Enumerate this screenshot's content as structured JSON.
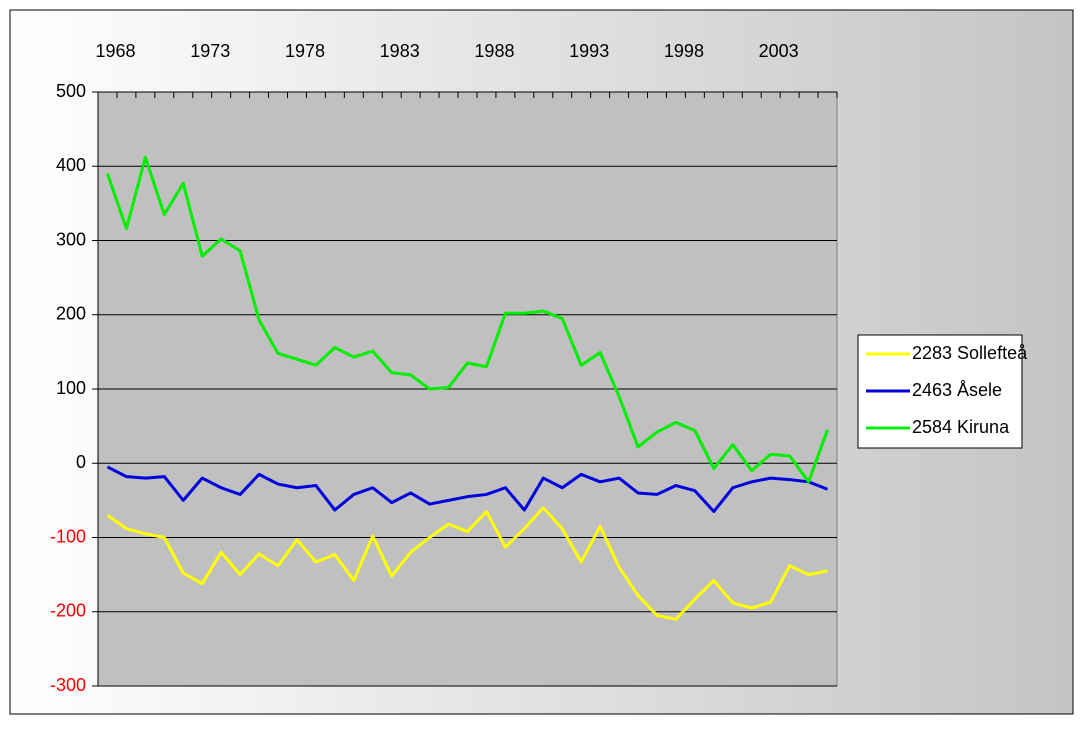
{
  "chart_data": {
    "type": "line",
    "categories": [
      "1968",
      null,
      null,
      null,
      null,
      "1973",
      null,
      null,
      null,
      null,
      "1978",
      null,
      null,
      null,
      null,
      "1983",
      null,
      null,
      null,
      null,
      "1988",
      null,
      null,
      null,
      null,
      "1993",
      null,
      null,
      null,
      null,
      "1998",
      null,
      null,
      null,
      null,
      "2003",
      null,
      null,
      null
    ],
    "series": [
      {
        "name": "2283 Sollefteå",
        "color": "#ffff00",
        "values": [
          -70,
          -88,
          -95,
          -100,
          -148,
          -162,
          -120,
          -150,
          -122,
          -138,
          -103,
          -133,
          -123,
          -158,
          -98,
          -152,
          -120,
          -100,
          -82,
          -92,
          -65,
          -113,
          -88,
          -60,
          -88,
          -133,
          -85,
          -140,
          -178,
          -205,
          -210,
          -183,
          -158,
          -188,
          -195,
          -187,
          -138,
          -150,
          -145
        ]
      },
      {
        "name": "2463 Åsele",
        "color": "#0000dd",
        "values": [
          -5,
          -18,
          -20,
          -18,
          -50,
          -20,
          -33,
          -42,
          -15,
          -28,
          -33,
          -30,
          -63,
          -42,
          -33,
          -53,
          -40,
          -55,
          -50,
          -45,
          -42,
          -33,
          -63,
          -20,
          -33,
          -15,
          -25,
          -20,
          -40,
          -42,
          -30,
          -37,
          -65,
          -33,
          -25,
          -20,
          -22,
          -25,
          -35
        ]
      },
      {
        "name": "2584 Kiruna",
        "color": "#00ee00",
        "values": [
          390,
          316,
          412,
          335,
          377,
          279,
          302,
          286,
          193,
          148,
          140,
          132,
          156,
          143,
          151,
          122,
          119,
          100,
          102,
          135,
          130,
          202,
          202,
          205,
          195,
          132,
          149,
          90,
          22,
          42,
          55,
          44,
          -7,
          25,
          -10,
          12,
          10,
          -25,
          45
        ]
      }
    ],
    "ylim": [
      -300,
      500
    ],
    "yticks": [
      -300,
      -200,
      -100,
      0,
      100,
      200,
      300,
      400,
      500
    ],
    "grid": true,
    "legend": "right",
    "negative_tick_color": "#ff0000",
    "plot_background": "#c0c0c0"
  }
}
